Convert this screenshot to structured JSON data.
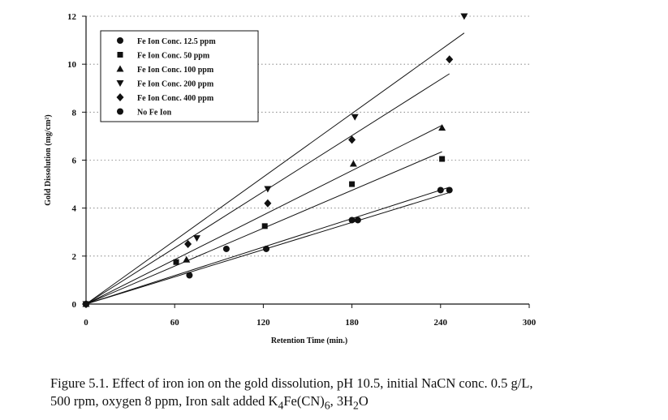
{
  "chart_data": {
    "type": "scatter",
    "xlabel": "Retention Time (min.)",
    "ylabel": "Gold Dissolution (mg/cm²)",
    "xlim": [
      0,
      300
    ],
    "ylim": [
      0,
      12
    ],
    "xticks": [
      0,
      60,
      120,
      180,
      240,
      300
    ],
    "yticks": [
      0,
      2,
      4,
      6,
      8,
      10,
      12
    ],
    "grid": "horizontal-dotted",
    "legend_position": "top-left",
    "trendlines": "linear fit through origin for each series",
    "series": [
      {
        "name": "Fe Ion Conc. 12.5 ppm",
        "marker": "circle",
        "points": [
          [
            0,
            0
          ],
          [
            70,
            1.2
          ],
          [
            122,
            2.3
          ],
          [
            180,
            3.5
          ],
          [
            240,
            4.75
          ]
        ],
        "trend_end": [
          245,
          4.85
        ]
      },
      {
        "name": "Fe Ion Conc. 50 ppm",
        "marker": "square",
        "points": [
          [
            0,
            0
          ],
          [
            61,
            1.75
          ],
          [
            121,
            3.25
          ],
          [
            180,
            5.0
          ],
          [
            241,
            6.05
          ]
        ],
        "trend_end": [
          241,
          6.35
        ]
      },
      {
        "name": "Fe Ion Conc. 100 ppm",
        "marker": "triangle-up",
        "points": [
          [
            0,
            0
          ],
          [
            68,
            1.85
          ],
          [
            181,
            5.85
          ],
          [
            241,
            7.35
          ]
        ],
        "trend_end": [
          241,
          7.45
        ]
      },
      {
        "name": "Fe Ion Conc. 200 ppm",
        "marker": "triangle-down",
        "points": [
          [
            0,
            0
          ],
          [
            75,
            2.75
          ],
          [
            123,
            4.8
          ],
          [
            182,
            7.8
          ],
          [
            256,
            12.0
          ]
        ],
        "trend_end": [
          256,
          11.3
        ]
      },
      {
        "name": "Fe Ion Conc. 400 ppm",
        "marker": "diamond",
        "points": [
          [
            0,
            0
          ],
          [
            69,
            2.5
          ],
          [
            123,
            4.2
          ],
          [
            180,
            6.85
          ],
          [
            246,
            10.2
          ]
        ],
        "trend_end": [
          246,
          9.6
        ]
      },
      {
        "name": "No Fe Ion",
        "marker": "circle",
        "points": [
          [
            0,
            0
          ],
          [
            95,
            2.3
          ],
          [
            184,
            3.5
          ],
          [
            246,
            4.75
          ]
        ],
        "trend_end": [
          246,
          4.65
        ]
      }
    ]
  },
  "caption": {
    "line1": "Figure 5.1. Effect of iron ion on the gold dissolution, pH 10.5, initial NaCN conc. 0.5 g/L,",
    "line2_prefix": "500 rpm, oxygen 8 ppm, Iron salt added K",
    "k_sub": "4",
    "line2_mid1": "Fe(CN)",
    "cn_sub": "6",
    "line2_mid2": ", 3H",
    "h_sub": "2",
    "line2_suffix": "O"
  }
}
